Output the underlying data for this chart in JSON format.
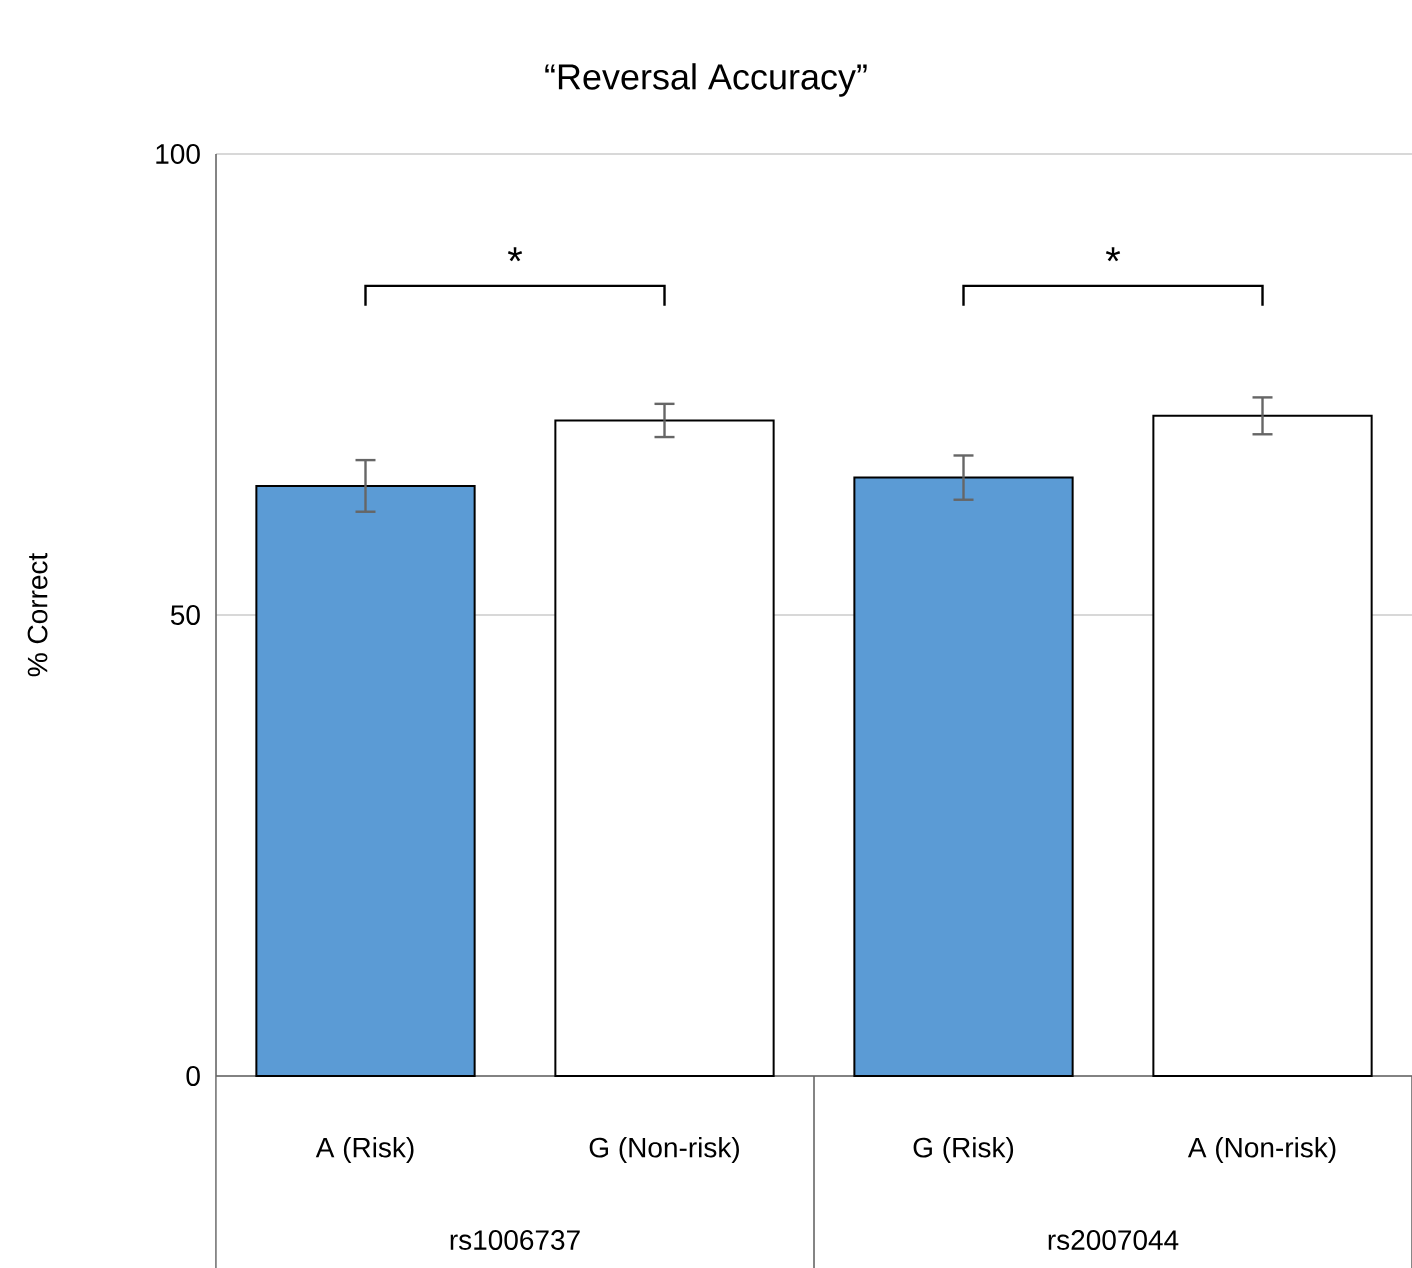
{
  "chart_data": {
    "type": "bar",
    "title": "“Reversal Accuracy”",
    "ylabel": "% Correct",
    "categories": [
      "A (Risk)",
      "G (Non-risk)",
      "G (Risk)",
      "A (Non-risk)"
    ],
    "values": [
      64.0,
      71.1,
      64.9,
      71.6
    ],
    "errors": [
      2.8,
      1.8,
      2.4,
      2.0
    ],
    "colors": [
      "#5b9bd5",
      "#ffffff",
      "#5b9bd5",
      "#ffffff"
    ],
    "ylim": [
      0,
      100
    ],
    "yticks": [
      0,
      50,
      100
    ],
    "grid": "y",
    "annotations": [
      "*",
      "*",
      "rs1006737",
      "rs2007044"
    ]
  }
}
